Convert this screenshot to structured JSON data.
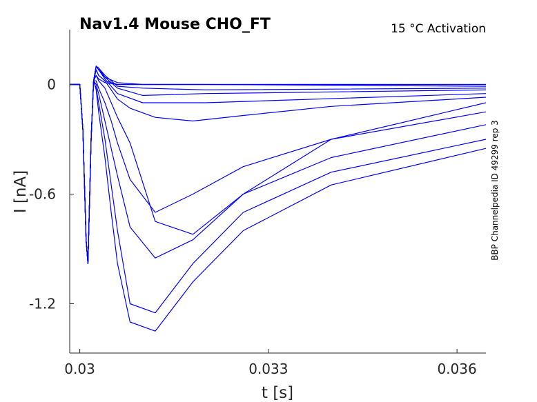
{
  "chart_data": {
    "type": "line",
    "title": "Nav1.4  Mouse  CHO_FT",
    "annotation": "15 °C  Activation",
    "side_note": "BBP Channelpedia ID 49299 rep 3",
    "xlabel": "t [s]",
    "ylabel": "I [nA]",
    "xlim": [
      0.02984,
      0.03646
    ],
    "ylim": [
      -1.47,
      0.3
    ],
    "xticks": [
      0.03,
      0.033,
      0.036
    ],
    "xtick_labels": [
      "0.03",
      "0.033",
      "0.036"
    ],
    "yticks": [
      0,
      -0.6,
      -1.2
    ],
    "ytick_labels": [
      "0",
      "-0.6",
      "-1.2"
    ],
    "line_color": "#0000ff",
    "grid": false,
    "box": "left-bottom",
    "series_note": "Family of sodium current traces (activation protocol); values estimated from the plot",
    "series": [
      {
        "x": [
          0.0298,
          0.03,
          0.03005,
          0.0301,
          0.03013,
          0.03018,
          0.03022,
          0.03026,
          0.0303,
          0.0304,
          0.0306,
          0.031,
          0.032,
          0.0366
        ],
        "y": [
          0.0,
          0.0,
          -0.25,
          -0.85,
          -0.98,
          -0.3,
          0.02,
          0.05,
          0.03,
          0.01,
          0.0,
          0.0,
          0.0,
          0.0
        ]
      },
      {
        "x": [
          0.0298,
          0.03,
          0.03005,
          0.0301,
          0.03013,
          0.03018,
          0.03022,
          0.03026,
          0.0303,
          0.0304,
          0.0306,
          0.031,
          0.032,
          0.0366
        ],
        "y": [
          0.0,
          0.0,
          -0.25,
          -0.85,
          -0.98,
          -0.3,
          0.02,
          0.08,
          0.05,
          0.02,
          0.0,
          0.0,
          0.0,
          0.0
        ]
      },
      {
        "x": [
          0.0298,
          0.03,
          0.03005,
          0.0301,
          0.03013,
          0.03018,
          0.03022,
          0.03026,
          0.0303,
          0.0304,
          0.0306,
          0.031,
          0.032,
          0.0366
        ],
        "y": [
          0.0,
          0.0,
          -0.25,
          -0.85,
          -0.98,
          -0.3,
          0.02,
          0.1,
          0.08,
          0.04,
          0.01,
          0.0,
          0.0,
          -0.01
        ]
      },
      {
        "x": [
          0.0298,
          0.03,
          0.03005,
          0.0301,
          0.03013,
          0.03018,
          0.03022,
          0.03026,
          0.0303,
          0.0304,
          0.0306,
          0.031,
          0.032,
          0.0366
        ],
        "y": [
          0.0,
          0.0,
          -0.25,
          -0.85,
          -0.98,
          -0.3,
          0.02,
          0.1,
          0.09,
          0.05,
          -0.01,
          -0.02,
          -0.03,
          -0.02
        ]
      },
      {
        "x": [
          0.0298,
          0.03,
          0.03005,
          0.0301,
          0.03013,
          0.03018,
          0.03022,
          0.03026,
          0.0303,
          0.0304,
          0.0306,
          0.031,
          0.032,
          0.0366
        ],
        "y": [
          0.0,
          0.0,
          -0.25,
          -0.85,
          -0.98,
          -0.3,
          0.02,
          0.1,
          0.09,
          0.04,
          -0.02,
          -0.06,
          -0.05,
          -0.03
        ]
      },
      {
        "x": [
          0.0298,
          0.03,
          0.03005,
          0.0301,
          0.03013,
          0.03018,
          0.03022,
          0.03026,
          0.0303,
          0.0304,
          0.0306,
          0.031,
          0.032,
          0.0366
        ],
        "y": [
          0.0,
          0.0,
          -0.25,
          -0.85,
          -0.98,
          -0.3,
          0.02,
          0.1,
          0.08,
          0.03,
          -0.05,
          -0.1,
          -0.1,
          -0.05
        ]
      },
      {
        "x": [
          0.0298,
          0.03,
          0.03005,
          0.0301,
          0.03013,
          0.03018,
          0.03022,
          0.03026,
          0.0303,
          0.0304,
          0.0305,
          0.0306,
          0.0308,
          0.0312,
          0.0318,
          0.0326,
          0.034,
          0.0366
        ],
        "y": [
          0.0,
          0.0,
          -0.25,
          -0.85,
          -0.98,
          -0.3,
          0.02,
          0.08,
          0.05,
          0.02,
          -0.03,
          -0.08,
          -0.13,
          -0.18,
          -0.2,
          -0.17,
          -0.12,
          -0.07
        ]
      },
      {
        "x": [
          0.0298,
          0.03,
          0.03005,
          0.0301,
          0.03013,
          0.03018,
          0.03022,
          0.03026,
          0.0303,
          0.0304,
          0.0305,
          0.0306,
          0.0308,
          0.0312,
          0.0318,
          0.0326,
          0.034,
          0.0366
        ],
        "y": [
          0.0,
          0.0,
          -0.25,
          -0.85,
          -0.98,
          -0.3,
          0.02,
          0.05,
          0.02,
          -0.02,
          -0.1,
          -0.18,
          -0.32,
          -0.75,
          -0.82,
          -0.6,
          -0.3,
          -0.1
        ]
      },
      {
        "x": [
          0.0298,
          0.03,
          0.03005,
          0.0301,
          0.03013,
          0.03018,
          0.03022,
          0.03026,
          0.0303,
          0.0304,
          0.0305,
          0.0306,
          0.0308,
          0.0312,
          0.0318,
          0.0326,
          0.034,
          0.0366
        ],
        "y": [
          0.0,
          0.0,
          -0.25,
          -0.85,
          -0.98,
          -0.3,
          0.02,
          0.02,
          -0.02,
          -0.1,
          -0.2,
          -0.32,
          -0.52,
          -0.7,
          -0.6,
          -0.45,
          -0.3,
          -0.15
        ]
      },
      {
        "x": [
          0.0298,
          0.03,
          0.03005,
          0.0301,
          0.03013,
          0.03018,
          0.03022,
          0.03026,
          0.0303,
          0.0304,
          0.0305,
          0.0306,
          0.0308,
          0.0312,
          0.0318,
          0.0326,
          0.034,
          0.0366
        ],
        "y": [
          0.0,
          0.0,
          -0.25,
          -0.85,
          -0.98,
          -0.3,
          0.02,
          0.0,
          -0.05,
          -0.2,
          -0.35,
          -0.5,
          -0.78,
          -0.95,
          -0.85,
          -0.6,
          -0.4,
          -0.22
        ]
      },
      {
        "x": [
          0.0298,
          0.03,
          0.03005,
          0.0301,
          0.03013,
          0.03018,
          0.03022,
          0.03026,
          0.0303,
          0.0304,
          0.0305,
          0.0306,
          0.0308,
          0.0312,
          0.0318,
          0.0326,
          0.034,
          0.0366
        ],
        "y": [
          0.0,
          0.0,
          -0.25,
          -0.85,
          -0.98,
          -0.3,
          0.02,
          -0.02,
          -0.1,
          -0.3,
          -0.55,
          -0.8,
          -1.2,
          -1.25,
          -0.98,
          -0.7,
          -0.48,
          -0.3
        ]
      },
      {
        "x": [
          0.0298,
          0.03,
          0.03005,
          0.0301,
          0.03013,
          0.03018,
          0.03022,
          0.03026,
          0.0303,
          0.0304,
          0.0305,
          0.0306,
          0.0308,
          0.0312,
          0.0318,
          0.0326,
          0.034,
          0.0366
        ],
        "y": [
          0.0,
          0.0,
          -0.25,
          -0.85,
          -0.98,
          -0.3,
          0.02,
          -0.03,
          -0.15,
          -0.4,
          -0.7,
          -0.98,
          -1.3,
          -1.35,
          -1.08,
          -0.8,
          -0.55,
          -0.35
        ]
      }
    ]
  }
}
